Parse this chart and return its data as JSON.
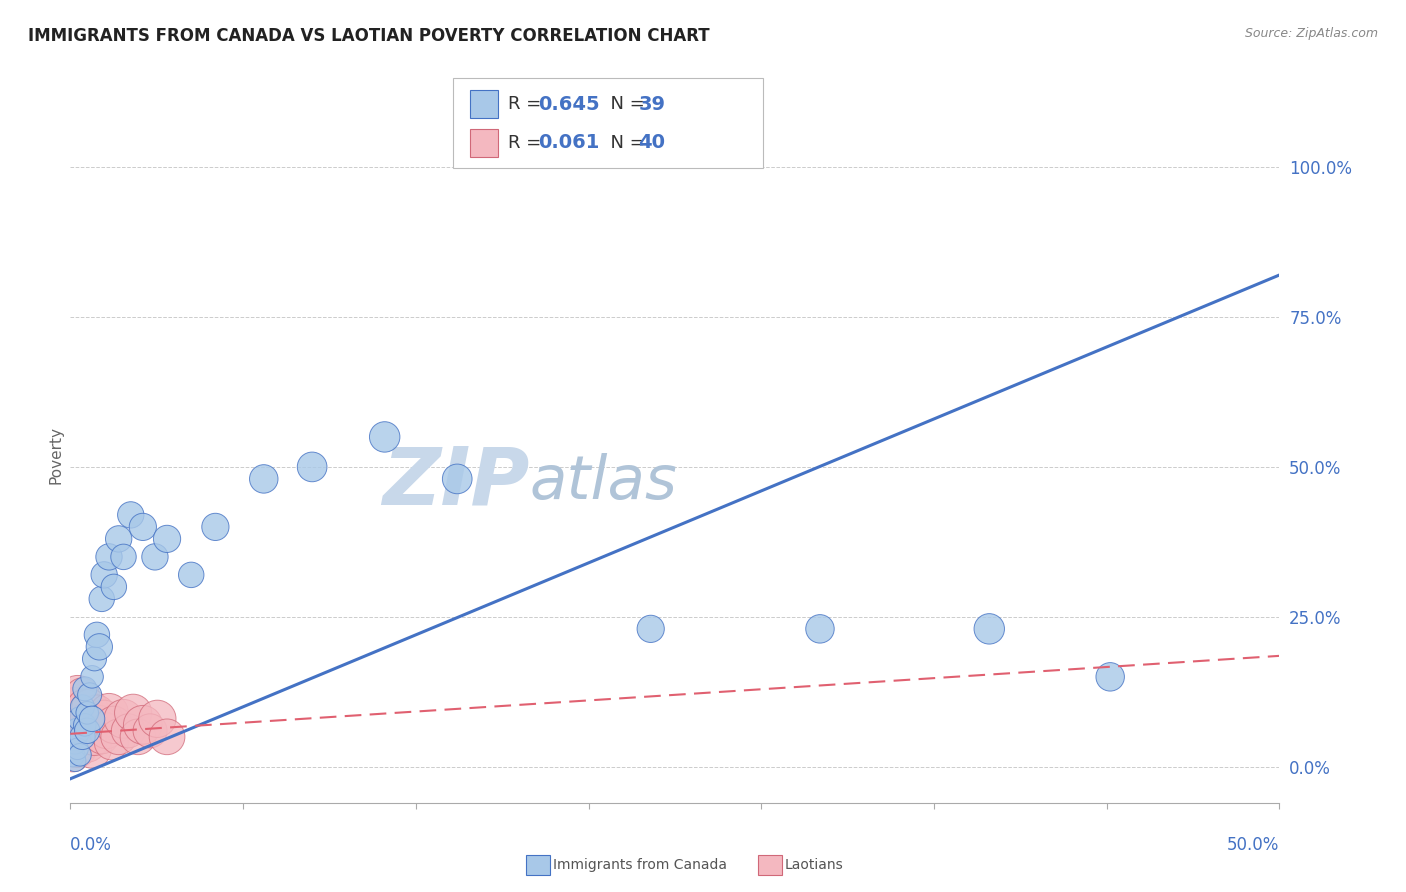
{
  "title": "IMMIGRANTS FROM CANADA VS LAOTIAN POVERTY CORRELATION CHART",
  "source_text": "Source: ZipAtlas.com",
  "ylabel": "Poverty",
  "right_yticks": [
    "0.0%",
    "25.0%",
    "50.0%",
    "75.0%",
    "100.0%"
  ],
  "right_ytick_vals": [
    0.0,
    0.25,
    0.5,
    0.75,
    1.0
  ],
  "xlim": [
    0.0,
    0.5
  ],
  "ylim": [
    -0.06,
    1.1
  ],
  "legend_r1": "R = ",
  "legend_v1": "0.645",
  "legend_n1_label": "N = ",
  "legend_n1_val": "39",
  "legend_r2": "R = ",
  "legend_v2": "0.061",
  "legend_n2_label": "N = ",
  "legend_n2_val": "40",
  "blue_color": "#a8c8e8",
  "pink_color": "#f4b8c0",
  "blue_line_color": "#4472c4",
  "pink_line_color": "#e06070",
  "blue_edge_color": "#4472c4",
  "pink_edge_color": "#d06878",
  "watermark_zip": "ZIP",
  "watermark_atlas": "atlas",
  "watermark_color_zip": "#c8d8e8",
  "watermark_color_atlas": "#b0c8d8",
  "grid_color": "#cccccc",
  "blue_scatter_x": [
    0.001,
    0.002,
    0.002,
    0.003,
    0.003,
    0.004,
    0.004,
    0.005,
    0.005,
    0.006,
    0.006,
    0.007,
    0.007,
    0.008,
    0.009,
    0.009,
    0.01,
    0.011,
    0.012,
    0.013,
    0.014,
    0.016,
    0.018,
    0.02,
    0.022,
    0.025,
    0.03,
    0.035,
    0.04,
    0.05,
    0.06,
    0.08,
    0.1,
    0.13,
    0.16,
    0.24,
    0.31,
    0.38,
    0.43
  ],
  "blue_scatter_y": [
    0.02,
    0.01,
    0.04,
    0.06,
    0.03,
    0.08,
    0.02,
    0.05,
    0.1,
    0.07,
    0.13,
    0.06,
    0.09,
    0.12,
    0.08,
    0.15,
    0.18,
    0.22,
    0.2,
    0.28,
    0.32,
    0.35,
    0.3,
    0.38,
    0.35,
    0.42,
    0.4,
    0.35,
    0.38,
    0.32,
    0.4,
    0.48,
    0.5,
    0.55,
    0.48,
    0.23,
    0.23,
    0.23,
    0.15
  ],
  "blue_scatter_size": [
    25,
    20,
    22,
    28,
    20,
    25,
    22,
    28,
    25,
    22,
    25,
    28,
    22,
    25,
    28,
    22,
    25,
    28,
    30,
    28,
    30,
    30,
    28,
    30,
    28,
    30,
    32,
    30,
    32,
    28,
    32,
    35,
    38,
    40,
    38,
    32,
    35,
    40,
    35
  ],
  "pink_scatter_x": [
    0.001,
    0.001,
    0.001,
    0.002,
    0.002,
    0.002,
    0.003,
    0.003,
    0.003,
    0.004,
    0.004,
    0.005,
    0.005,
    0.005,
    0.006,
    0.006,
    0.007,
    0.007,
    0.008,
    0.008,
    0.009,
    0.009,
    0.01,
    0.011,
    0.012,
    0.013,
    0.014,
    0.015,
    0.016,
    0.017,
    0.018,
    0.02,
    0.022,
    0.024,
    0.026,
    0.028,
    0.03,
    0.033,
    0.036,
    0.04
  ],
  "pink_scatter_y": [
    0.05,
    0.02,
    0.08,
    0.04,
    0.1,
    0.06,
    0.03,
    0.08,
    0.12,
    0.05,
    0.09,
    0.04,
    0.07,
    0.12,
    0.06,
    0.1,
    0.04,
    0.08,
    0.06,
    0.1,
    0.03,
    0.07,
    0.05,
    0.09,
    0.07,
    0.05,
    0.08,
    0.06,
    0.09,
    0.04,
    0.07,
    0.05,
    0.08,
    0.06,
    0.09,
    0.05,
    0.07,
    0.06,
    0.08,
    0.05
  ],
  "pink_scatter_size": [
    55,
    50,
    60,
    55,
    65,
    50,
    60,
    55,
    65,
    50,
    60,
    55,
    65,
    50,
    60,
    55,
    65,
    50,
    60,
    55,
    65,
    50,
    60,
    55,
    65,
    50,
    60,
    55,
    65,
    50,
    60,
    55,
    65,
    50,
    60,
    55,
    65,
    50,
    60,
    55
  ],
  "blue_line_x0": 0.0,
  "blue_line_y0": -0.02,
  "blue_line_x1": 0.5,
  "blue_line_y1": 0.82,
  "pink_line_x0": 0.0,
  "pink_line_y0": 0.055,
  "pink_line_x1": 0.5,
  "pink_line_y1": 0.185
}
